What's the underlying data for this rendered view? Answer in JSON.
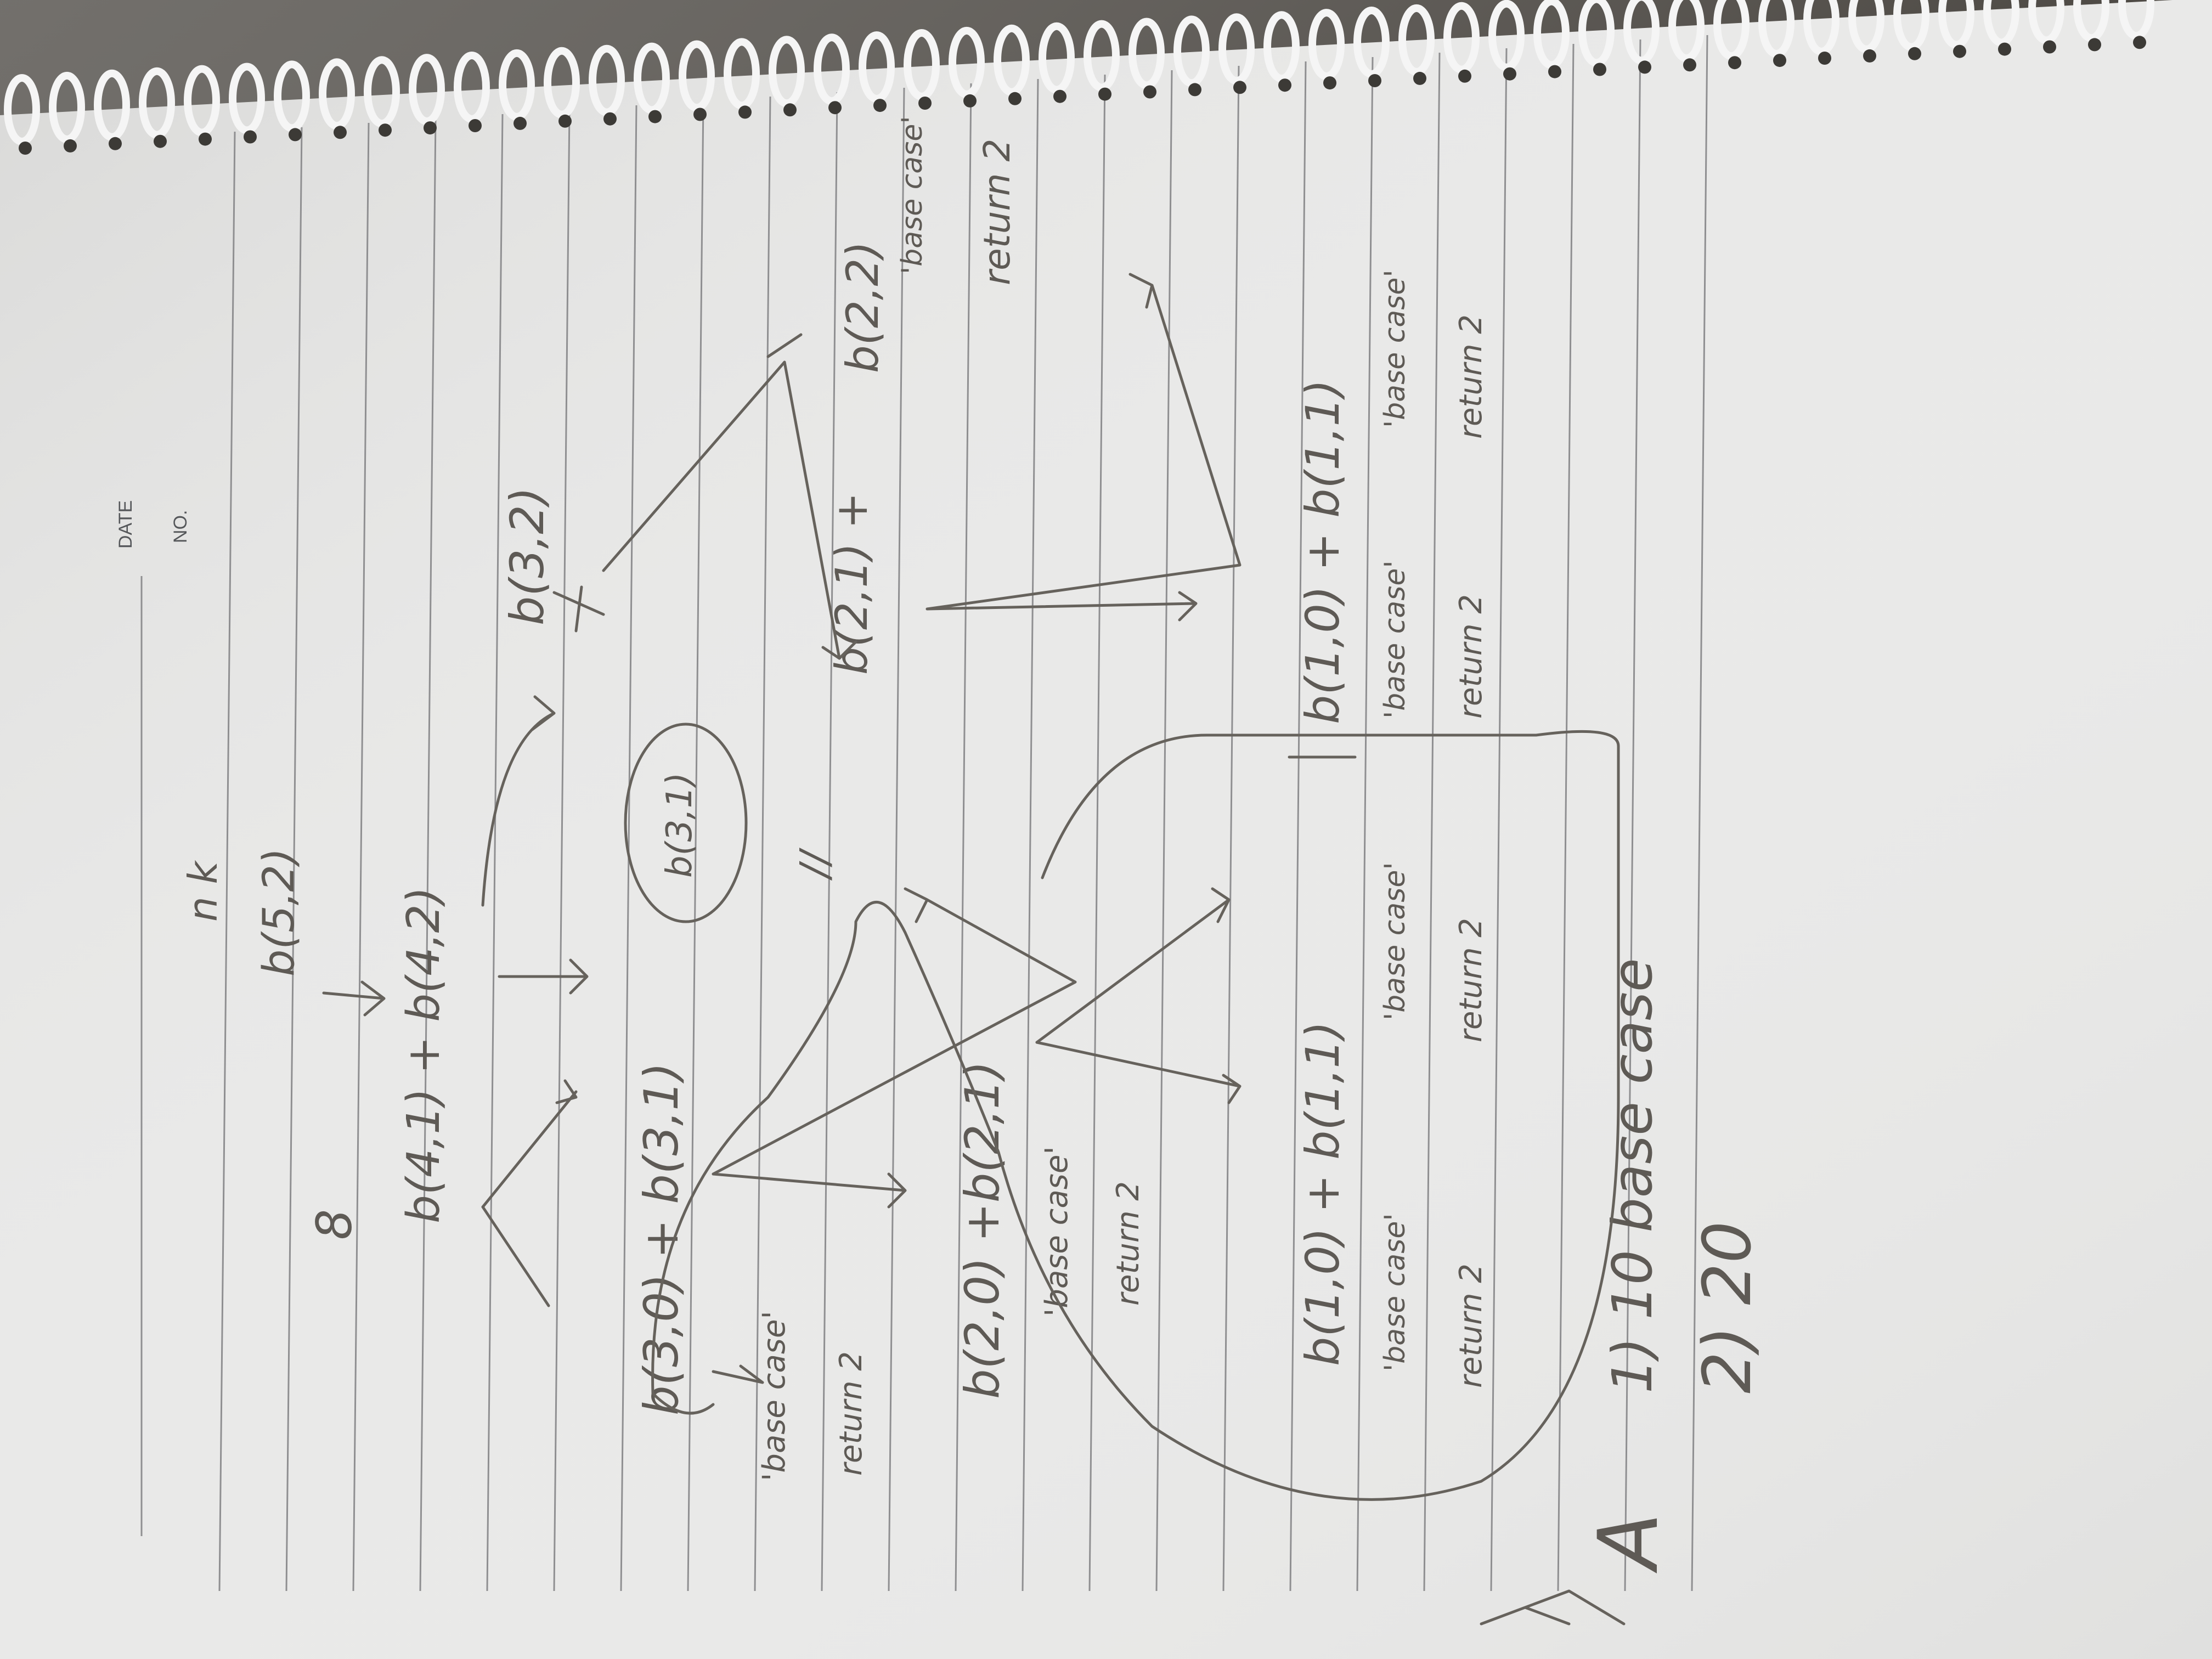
{
  "header": {
    "date_label": "DATE",
    "no_label": "NO."
  },
  "notes": {
    "heading": "n  k",
    "root": "b(5,2)",
    "root_mark": "8",
    "level1": "b(4,1) + b(4,2)",
    "right_1": "b(3,2)",
    "left_2": "b(3,0) + b(3,1)",
    "circled": "b(3,1)",
    "left_base": "'base case'",
    "left_return": "return 2",
    "mid_3": "b(2,0)  +b(2,1)",
    "mid_base": "'base case'",
    "mid_return": "return 2",
    "right_3": "b(2,1) +",
    "right_3b": "b(2,2)",
    "right_base": "'base case'",
    "right_return": "return 2",
    "eq_mark": "//",
    "level4_a": "b(1,0) + b(1,1)",
    "level4_a_base1": "'base case'",
    "level4_a_base2": "'base case'",
    "level4_a_ret1": "return 2",
    "level4_a_ret2": "return 2",
    "level4_b": "b(1,0) + b(1,1)",
    "level4_b_base1": "'base case'",
    "level4_b_base2": "'base case'",
    "level4_b_ret1": "return 2",
    "level4_b_ret2": "return 2",
    "answer_label": "A",
    "answer_1": "1) 10 base case",
    "answer_2": "2) 20"
  },
  "colors": {
    "paper": "#ebebea",
    "rule": "#8c8c8e",
    "pencil": "#5e5a55",
    "desk": "#4a4742"
  }
}
